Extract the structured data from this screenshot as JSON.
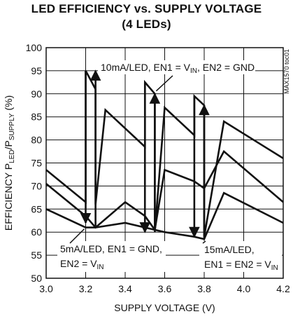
{
  "title_line1": "LED EFFICIENCY vs. SUPPLY VOLTAGE",
  "title_line2": "(4 LEDs)",
  "part_number": "MAX1570 toc01",
  "chart_data": {
    "type": "line",
    "title": "LED EFFICIENCY vs. SUPPLY VOLTAGE (4 LEDs)",
    "xlabel": "SUPPLY VOLTAGE (V)",
    "ylabel": "EFFICIENCY P_LED/P_SUPPLY (%)",
    "xlim": [
      3.0,
      4.2
    ],
    "ylim": [
      50,
      100
    ],
    "xticks": [
      "3.0",
      "3.2",
      "3.4",
      "3.6",
      "3.8",
      "4.0",
      "4.2"
    ],
    "yticks": [
      "50",
      "55",
      "60",
      "65",
      "70",
      "75",
      "80",
      "85",
      "90",
      "95",
      "100"
    ],
    "grid": true,
    "series": [
      {
        "name": "10mA/LED, EN1 = VIN, EN2 = GND",
        "x": [
          3.0,
          3.2,
          3.2,
          3.25,
          3.25,
          3.3,
          3.5,
          3.5,
          3.55,
          3.55,
          3.6,
          3.75,
          3.75,
          3.8,
          3.8,
          3.9,
          4.2
        ],
        "y": [
          73.5,
          66.5,
          95,
          91,
          66,
          86.5,
          78.5,
          92.5,
          90,
          60,
          87,
          81,
          89.5,
          87.5,
          59,
          84,
          76
        ]
      },
      {
        "name": "5mA/LED, EN1 = GND, EN2 = VIN",
        "x": [
          3.0,
          3.2,
          3.25,
          3.4,
          3.5,
          3.55,
          3.6,
          3.75,
          3.8,
          3.9,
          4.2
        ],
        "y": [
          70.5,
          63.5,
          61,
          66.5,
          63.5,
          60.5,
          73.5,
          71,
          69.5,
          77.5,
          66.5
        ]
      },
      {
        "name": "15mA/LED, EN1 = EN2 = VIN",
        "x": [
          3.0,
          3.2,
          3.25,
          3.4,
          3.5,
          3.6,
          3.75,
          3.8,
          3.9,
          4.2
        ],
        "y": [
          65,
          61,
          61,
          62,
          61,
          60,
          59,
          58.5,
          68.5,
          62
        ]
      }
    ],
    "arrows": [
      {
        "x": 3.2,
        "y_from": 95,
        "y_to": 62,
        "direction": "down"
      },
      {
        "x": 3.25,
        "y_from": 61,
        "y_to": 95,
        "direction": "up"
      },
      {
        "x": 3.5,
        "y_from": 92.5,
        "y_to": 60,
        "direction": "down"
      },
      {
        "x": 3.55,
        "y_from": 60.5,
        "y_to": 90,
        "direction": "up"
      },
      {
        "x": 3.75,
        "y_from": 89.5,
        "y_to": 59,
        "direction": "down"
      },
      {
        "x": 3.8,
        "y_from": 58.5,
        "y_to": 87.5,
        "direction": "up"
      }
    ],
    "annotations": {
      "a10": {
        "text": "10mA/LED, EN1 = V",
        "sub": "IN",
        "text2": ", EN2 = GND"
      },
      "a5_line1": {
        "text": "5mA/LED, EN1 = GND,"
      },
      "a5_line2": {
        "text": "EN2 = V",
        "sub": "IN"
      },
      "a15_line1": {
        "text": "15mA/LED,"
      },
      "a15_line2": {
        "text": "EN1 = EN2 = V",
        "sub": "IN"
      }
    },
    "ylabel_parts": {
      "pre": "EFFICIENCY P",
      "sub1": "LED",
      "mid": "/P",
      "sub2": "SUPPLY",
      "post": " (%)"
    }
  }
}
